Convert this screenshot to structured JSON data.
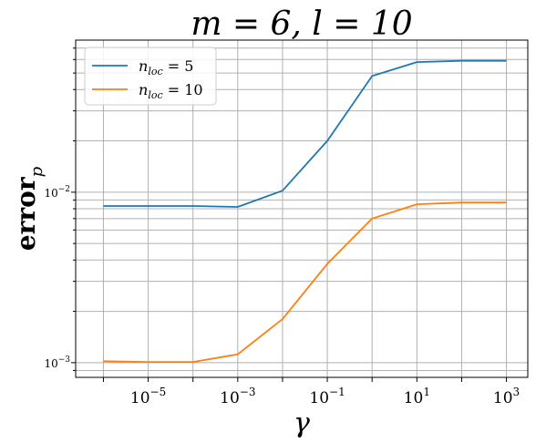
{
  "chart_data": {
    "type": "line",
    "title": "m = 6, l = 10",
    "xlabel": "γ",
    "ylabel": "error",
    "ylabel_sub": "p",
    "x_scale": "log",
    "y_scale": "log",
    "xlim": [
      2.4e-07,
      3000
    ],
    "ylim": [
      0.00082,
      0.078
    ],
    "grid": true,
    "legend_position": "upper-left",
    "x_ticks": [
      {
        "value": 1e-05,
        "base": "10",
        "exp": "−5"
      },
      {
        "value": 0.001,
        "base": "10",
        "exp": "−3"
      },
      {
        "value": 0.1,
        "base": "10",
        "exp": "−1"
      },
      {
        "value": 10,
        "base": "10",
        "exp": "1"
      },
      {
        "value": 1000,
        "base": "10",
        "exp": "3"
      }
    ],
    "y_ticks": [
      {
        "value": 0.001,
        "base": "10",
        "exp": "−3"
      },
      {
        "value": 0.01,
        "base": "10",
        "exp": "−2"
      }
    ],
    "x": [
      1e-06,
      1e-05,
      0.0001,
      0.001,
      0.01,
      0.1,
      1,
      10,
      100,
      1000
    ],
    "series": [
      {
        "name_base": "n",
        "name_sub": "loc",
        "name_value": "= 5",
        "color": "#1f77b4",
        "values": [
          0.0083,
          0.0083,
          0.0083,
          0.0082,
          0.0102,
          0.02,
          0.048,
          0.058,
          0.059,
          0.059
        ]
      },
      {
        "name_base": "n",
        "name_sub": "loc",
        "name_value": "= 10",
        "color": "#ff7f0e",
        "values": [
          0.00102,
          0.00101,
          0.00101,
          0.00112,
          0.0018,
          0.0038,
          0.007,
          0.0085,
          0.0087,
          0.0087
        ]
      }
    ]
  }
}
